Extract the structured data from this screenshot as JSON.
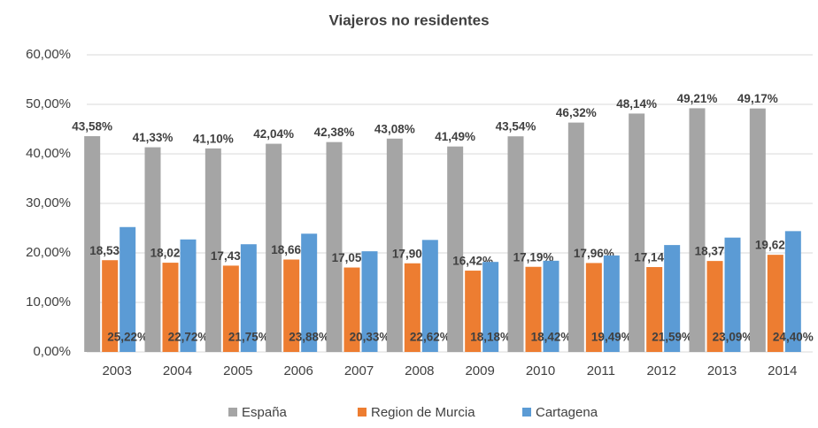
{
  "chart_data": {
    "type": "bar",
    "title": "Viajeros no residentes",
    "categories": [
      "2003",
      "2004",
      "2005",
      "2006",
      "2007",
      "2008",
      "2009",
      "2010",
      "2011",
      "2012",
      "2013",
      "2014"
    ],
    "series": [
      {
        "name": "España",
        "color": "#a5a5a5",
        "values": [
          43.58,
          41.33,
          41.1,
          42.04,
          42.38,
          43.08,
          41.49,
          43.54,
          46.32,
          48.14,
          49.21,
          49.17
        ],
        "value_labels": [
          "43,58%",
          "41,33%",
          "41,10%",
          "42,04%",
          "42,38%",
          "43,08%",
          "41,49%",
          "43,54%",
          "46,32%",
          "48,14%",
          "49,21%",
          "49,17%"
        ]
      },
      {
        "name": "Region de Murcia",
        "color": "#ed7d31",
        "values": [
          18.53,
          18.02,
          17.43,
          18.66,
          17.05,
          17.9,
          16.42,
          17.19,
          17.96,
          17.14,
          18.37,
          19.62
        ],
        "value_labels": [
          "18,53%",
          "18,02%",
          "17,43%",
          "18,66%",
          "17,05%",
          "17,90%",
          "16,42%",
          "17,19%",
          "17,96%",
          "17,14%",
          "18,37%",
          "19,62%"
        ]
      },
      {
        "name": "Cartagena",
        "color": "#5b9bd5",
        "values": [
          25.22,
          22.72,
          21.75,
          23.88,
          20.33,
          22.62,
          18.18,
          18.42,
          19.49,
          21.59,
          23.09,
          24.4
        ],
        "value_labels": [
          "25,22%",
          "22,72%",
          "21,75%",
          "23,88%",
          "20,33%",
          "22,62%",
          "18,18%",
          "18,42%",
          "19,49%",
          "21,59%",
          "23,09%",
          "24,40%"
        ]
      }
    ],
    "ylim": [
      0,
      60
    ],
    "yticks": [
      {
        "value": 0,
        "label": "0,00%"
      },
      {
        "value": 10,
        "label": "10,00%"
      },
      {
        "value": 20,
        "label": "20,00%"
      },
      {
        "value": 30,
        "label": "30,00%"
      },
      {
        "value": 40,
        "label": "40,00%"
      },
      {
        "value": 50,
        "label": "50,00%"
      },
      {
        "value": 60,
        "label": "60,00%"
      }
    ],
    "grid": true,
    "legend": "bottom"
  }
}
